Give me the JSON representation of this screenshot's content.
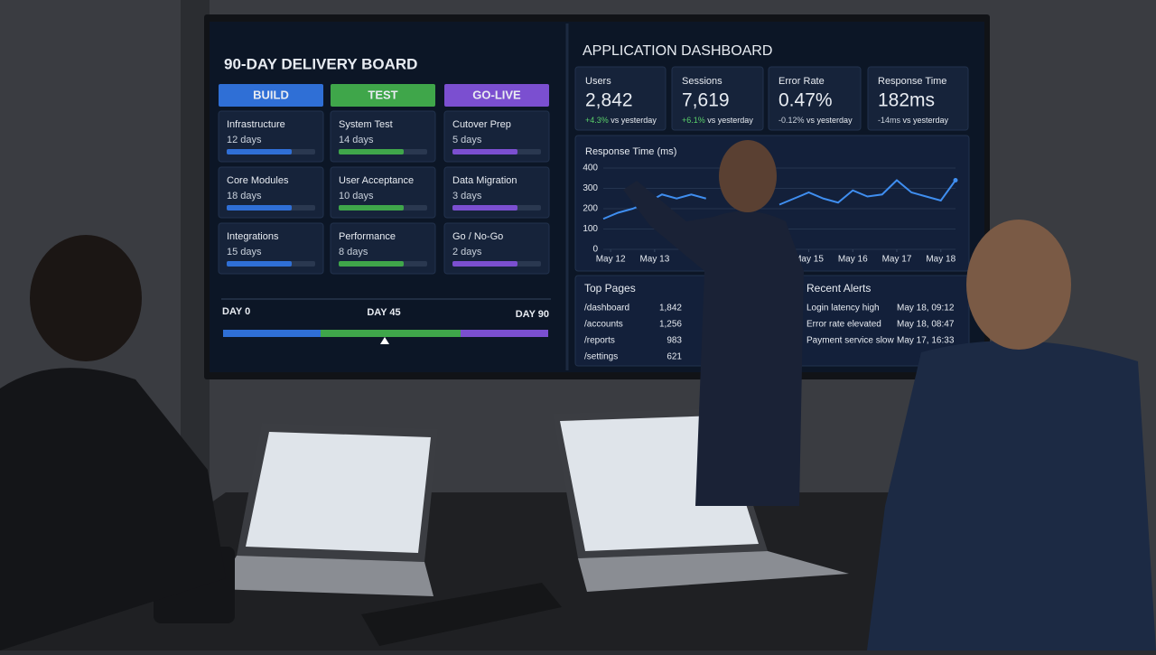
{
  "delivery_board": {
    "title": "90-DAY DELIVERY BOARD",
    "columns": [
      {
        "name": "BUILD",
        "color": "#2f6fd6",
        "tasks": [
          {
            "name": "Infrastructure",
            "duration": "12 days"
          },
          {
            "name": "Core Modules",
            "duration": "18 days"
          },
          {
            "name": "Integrations",
            "duration": "15 days"
          }
        ]
      },
      {
        "name": "TEST",
        "color": "#3fa64a",
        "tasks": [
          {
            "name": "System Test",
            "duration": "14 days"
          },
          {
            "name": "User Acceptance",
            "duration": "10 days"
          },
          {
            "name": "Performance",
            "duration": "8 days"
          }
        ]
      },
      {
        "name": "GO-LIVE",
        "color": "#7b4fd0",
        "tasks": [
          {
            "name": "Cutover Prep",
            "duration": "5 days"
          },
          {
            "name": "Data Migration",
            "duration": "3 days"
          },
          {
            "name": "Go / No-Go",
            "duration": "2 days"
          }
        ]
      }
    ],
    "timeline": {
      "start": "DAY 0",
      "mid": "DAY 45",
      "end": "DAY 90"
    }
  },
  "dashboard": {
    "title": "APPLICATION DASHBOARD",
    "kpis": [
      {
        "label": "Users",
        "value": "2,842",
        "change": "+4.3%",
        "note": "vs yesterday"
      },
      {
        "label": "Sessions",
        "value": "7,619",
        "change": "+6.1%",
        "note": "vs yesterday"
      },
      {
        "label": "Error Rate",
        "value": "0.47%",
        "change": "-0.12%",
        "note": "vs yesterday"
      },
      {
        "label": "Response Time",
        "value": "182ms",
        "change": "-14ms",
        "note": "vs yesterday"
      }
    ],
    "top_pages": {
      "title": "Top Pages",
      "rows": [
        [
          "/dashboard",
          "1,842"
        ],
        [
          "/accounts",
          "1,256"
        ],
        [
          "/reports",
          "983"
        ],
        [
          "/settings",
          "621"
        ]
      ]
    },
    "recent_alerts": {
      "title": "Recent Alerts",
      "rows": [
        [
          "Login latency high",
          "May 18, 09:12"
        ],
        [
          "Error rate elevated",
          "May 18, 08:47"
        ],
        [
          "Payment service slow",
          "May 17, 16:33"
        ]
      ]
    }
  },
  "chart_data": {
    "type": "line",
    "title": "Response Time (ms)",
    "color": "#3f8ef0",
    "grid": true,
    "values": [
      150,
      180,
      200,
      230,
      270,
      250,
      270,
      250,
      null,
      null,
      null,
      null,
      220,
      250,
      280,
      250,
      230,
      290,
      260,
      270,
      340,
      280,
      260,
      240,
      340
    ],
    "xlim": [
      0,
      24
    ],
    "xticks": [
      {
        "value": 0.5,
        "label": "May 12"
      },
      {
        "value": 3.5,
        "label": "May 13"
      },
      {
        "value": 14,
        "label": "May 15"
      },
      {
        "value": 17,
        "label": "May 16"
      },
      {
        "value": 20,
        "label": "May 17"
      },
      {
        "value": 23,
        "label": "May 18"
      }
    ],
    "ylim": [
      0,
      400
    ],
    "yticks": [
      0,
      100,
      200,
      300,
      400
    ]
  }
}
